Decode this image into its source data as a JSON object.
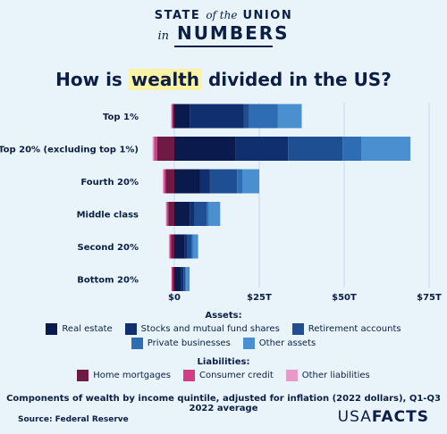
{
  "brand": {
    "line1_a": "STATE",
    "line1_b": "of the",
    "line1_c": "UNION",
    "line2_a": "in",
    "line2_b": "NUMBERS"
  },
  "title": {
    "pre": "How is ",
    "highlight": "wealth",
    "post": " divided in the US?"
  },
  "legend": {
    "assets_heading": "Assets:",
    "liabilities_heading": "Liabilities:"
  },
  "caption": "Components of wealth by income quintile, adjusted for inflation (2022 dollars), Q1-Q3 2022 average",
  "source": "Source: Federal Reserve",
  "logo": {
    "thin": "USA",
    "bold": "FACTS"
  },
  "colors": {
    "real_estate": "#0a1a4d",
    "stocks": "#102f6e",
    "retirement": "#1e4f93",
    "private_business": "#2e6db3",
    "other_assets": "#4a90d0",
    "home_mortgages": "#6e1a45",
    "consumer_credit": "#d43c83",
    "other_liabilities": "#e59ac9"
  },
  "chart_data": {
    "type": "bar",
    "orientation": "horizontal",
    "stacked": true,
    "categories": [
      "Top 1%",
      "Top 20% (excluding top 1%)",
      "Fourth 20%",
      "Middle class",
      "Second 20%",
      "Bottom 20%"
    ],
    "xlim": [
      -5,
      75
    ],
    "x_ticks": [
      0,
      25,
      50,
      75
    ],
    "x_tick_labels": [
      "$0",
      "$25T",
      "$50T",
      "$75T"
    ],
    "grid": true,
    "assets": [
      {
        "name": "Real estate",
        "color_key": "real_estate",
        "values": [
          4.5,
          18.0,
          7.5,
          4.5,
          3.0,
          2.0
        ]
      },
      {
        "name": "Stocks and mutual fund shares",
        "color_key": "stocks",
        "values": [
          16.0,
          15.5,
          3.0,
          1.5,
          0.8,
          0.7
        ]
      },
      {
        "name": "Retirement accounts",
        "color_key": "retirement",
        "values": [
          1.5,
          16.0,
          8.0,
          3.5,
          1.2,
          0.5
        ]
      },
      {
        "name": "Private businesses",
        "color_key": "private_business",
        "values": [
          8.5,
          5.5,
          1.5,
          0.5,
          0.5,
          0.3
        ]
      },
      {
        "name": "Other assets",
        "color_key": "other_assets",
        "values": [
          7.0,
          14.5,
          5.0,
          3.5,
          1.5,
          1.0
        ]
      }
    ],
    "liabilities": [
      {
        "name": "Home mortgages",
        "color_key": "home_mortgages",
        "values": [
          0.5,
          5.0,
          2.5,
          1.8,
          1.0,
          0.5
        ]
      },
      {
        "name": "Consumer credit",
        "color_key": "consumer_credit",
        "values": [
          0.2,
          1.0,
          0.6,
          0.5,
          0.4,
          0.3
        ]
      },
      {
        "name": "Other liabilities",
        "color_key": "other_liabilities",
        "values": [
          0.3,
          0.4,
          0.3,
          0.2,
          0.2,
          0.1
        ]
      }
    ]
  }
}
